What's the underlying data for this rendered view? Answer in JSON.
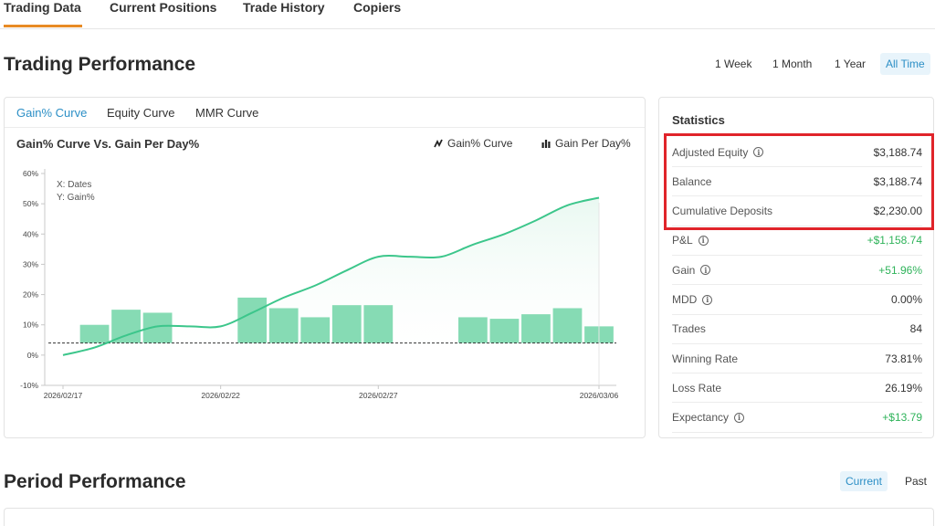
{
  "tabs": [
    {
      "label": "Trading Data",
      "active": true
    },
    {
      "label": "Current Positions",
      "active": false
    },
    {
      "label": "Trade History",
      "active": false
    },
    {
      "label": "Copiers",
      "active": false
    }
  ],
  "performance": {
    "title": "Trading Performance",
    "ranges": [
      {
        "label": "1 Week",
        "active": false
      },
      {
        "label": "1 Month",
        "active": false
      },
      {
        "label": "1 Year",
        "active": false
      },
      {
        "label": "All Time",
        "active": true
      }
    ]
  },
  "chart_panel": {
    "tabs": [
      {
        "label": "Gain% Curve",
        "active": true
      },
      {
        "label": "Equity Curve",
        "active": false
      },
      {
        "label": "MMR Curve",
        "active": false
      }
    ],
    "title": "Gain% Curve Vs. Gain Per Day%",
    "legend": [
      {
        "label": "Gain% Curve",
        "icon": "trend-line-icon"
      },
      {
        "label": "Gain Per Day%",
        "icon": "bar-chart-icon"
      }
    ]
  },
  "chart_data": {
    "type": "bar+line",
    "annotation_x": "X: Dates",
    "annotation_y": "Y: Gain%",
    "y_ticks": [
      "60%",
      "50%",
      "40%",
      "30%",
      "20%",
      "10%",
      "0%",
      "-10%"
    ],
    "ylim": [
      -10,
      60
    ],
    "x_ticks": [
      "2026/02/17",
      "2026/02/22",
      "2026/02/27",
      "2026/03/06"
    ],
    "xlim": [
      0,
      17
    ],
    "baseline_value": 4,
    "bar_series": {
      "x": [
        1,
        2,
        3,
        6,
        7,
        8,
        9,
        10,
        13,
        14,
        15,
        16,
        17
      ],
      "values": [
        10,
        15,
        14,
        19,
        15.5,
        12.5,
        16.5,
        16.5,
        12.5,
        12,
        13.5,
        15.5,
        9.5
      ]
    },
    "line_series": {
      "x": [
        0,
        1,
        2,
        3,
        4,
        5,
        6,
        7,
        8,
        9,
        10,
        11,
        12,
        13,
        14,
        15,
        16,
        17
      ],
      "values": [
        0,
        2.5,
        6.5,
        9.5,
        9.5,
        9.5,
        14,
        19,
        23,
        28,
        32.5,
        32.5,
        32.5,
        36.5,
        40,
        44.5,
        49.5,
        52
      ]
    },
    "colors": {
      "bar": "#86dbb4",
      "line": "#3cc68b",
      "area": "#e9f8f1"
    }
  },
  "statistics": {
    "title": "Statistics",
    "rows": [
      {
        "label": "Adjusted Equity",
        "info": true,
        "value": "$3,188.74",
        "positive": false
      },
      {
        "label": "Balance",
        "info": false,
        "value": "$3,188.74",
        "positive": false
      },
      {
        "label": "Cumulative Deposits",
        "info": false,
        "value": "$2,230.00",
        "positive": false
      },
      {
        "label": "P&L",
        "info": true,
        "value": "+$1,158.74",
        "positive": true
      },
      {
        "label": "Gain",
        "info": true,
        "value": "+51.96%",
        "positive": true
      },
      {
        "label": "MDD",
        "info": true,
        "value": "0.00%",
        "positive": false
      },
      {
        "label": "Trades",
        "info": false,
        "value": "84",
        "positive": false
      },
      {
        "label": "Winning Rate",
        "info": false,
        "value": "73.81%",
        "positive": false
      },
      {
        "label": "Loss Rate",
        "info": false,
        "value": "26.19%",
        "positive": false
      },
      {
        "label": "Expectancy",
        "info": true,
        "value": "+$13.79",
        "positive": true
      }
    ]
  },
  "period": {
    "title": "Period Performance",
    "buttons": [
      {
        "label": "Current",
        "active": true
      },
      {
        "label": "Past",
        "active": false
      }
    ]
  },
  "colors": {
    "accent": "#2c8fc6",
    "tab_underline": "#e88b25",
    "positive": "#2fb35a",
    "highlight": "#e0242a"
  }
}
